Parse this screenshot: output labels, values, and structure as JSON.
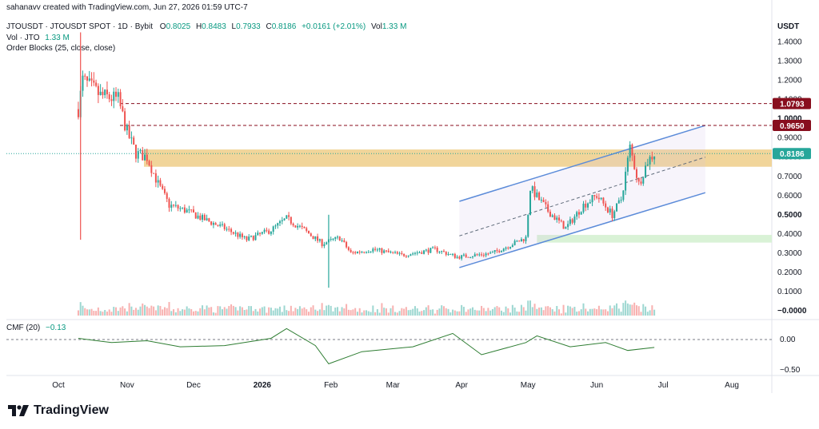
{
  "credit": "sahanavv created with TradingView.com, Jun 27, 2026 01:59 UTC-7",
  "header": {
    "symbol": "JTOUSDT · JTOUSDT SPOT · 1D · Bybit",
    "o_label": "O",
    "o_value": "0.8025",
    "h_label": "H",
    "h_value": "0.8483",
    "l_label": "L",
    "l_value": "0.7933",
    "c_label": "C",
    "c_value": "0.8186",
    "change": "+0.0161 (+2.01%)",
    "vol_label": "Vol",
    "vol_value": "1.33 M"
  },
  "volume_indicator": {
    "label": "Vol · JTO",
    "value": "1.33 M"
  },
  "order_blocks_label": "Order Blocks (25, close, close)",
  "cmf_indicator": {
    "label": "CMF (20)",
    "value": "−0.13"
  },
  "currency": "USDT",
  "price_axis": {
    "ticks": [
      "1.4000",
      "1.3000",
      "1.2000",
      "1.1000",
      "1.0000",
      "0.9000",
      "0.8000",
      "0.7000",
      "0.6000",
      "0.5000",
      "0.4000",
      "0.3000",
      "0.2000",
      "0.1000",
      "−0.0000"
    ],
    "bold_ticks": [
      "1.0000",
      "0.5000",
      "−0.0000"
    ]
  },
  "price_tags": [
    {
      "text": "1.0793",
      "color": "#880e1e"
    },
    {
      "text": "0.9650",
      "color": "#880e1e"
    },
    {
      "text": "0.8186",
      "color": "#26a69a"
    }
  ],
  "cmf_axis": {
    "ticks": [
      "0.00",
      "−0.50"
    ]
  },
  "time_axis": {
    "labels": [
      "Oct",
      "Nov",
      "Dec",
      "2026",
      "Feb",
      "Mar",
      "Apr",
      "May",
      "Jun",
      "Jul",
      "Aug"
    ],
    "bold_labels": [
      "2026"
    ]
  },
  "colors": {
    "up": "#26a69a",
    "down": "#ef5350",
    "channel": "#5b8bd9",
    "order_block": "#f0d08f",
    "support_zone": "#d9f2d6",
    "cmf_line": "#2e7d32",
    "dashed_level": "#880e1e"
  },
  "footer": {
    "logo_icon": "tradingview-logo-icon",
    "brand": "TradingView"
  },
  "chart_data": {
    "type": "candlestick",
    "title": "JTOUSDT · JTOUSDT SPOT · 1D · Bybit",
    "ylim": [
      0,
      1.45
    ],
    "horizontal_levels": [
      1.0793,
      0.965
    ],
    "last_price": 0.8186,
    "order_block_zone": [
      0.75,
      0.84
    ],
    "support_zone": [
      0.355,
      0.395
    ],
    "channel": {
      "upper": [
        {
          "date": "2026-03-31",
          "price": 0.57
        },
        {
          "date": "2026-07-20",
          "price": 0.965
        }
      ],
      "mid": [
        {
          "date": "2026-03-31",
          "price": 0.39
        },
        {
          "date": "2026-07-20",
          "price": 0.8
        }
      ],
      "lower": [
        {
          "date": "2026-03-31",
          "price": 0.225
        },
        {
          "date": "2026-07-20",
          "price": 0.615
        }
      ]
    },
    "price_path": [
      {
        "date": "2025-10-10",
        "price": 1.05
      },
      {
        "date": "2025-10-12",
        "price": 1.2
      },
      {
        "date": "2025-10-20",
        "price": 1.12
      },
      {
        "date": "2025-10-28",
        "price": 1.1
      },
      {
        "date": "2025-11-01",
        "price": 0.93
      },
      {
        "date": "2025-11-05",
        "price": 0.82
      },
      {
        "date": "2025-11-10",
        "price": 0.8
      },
      {
        "date": "2025-11-15",
        "price": 0.66
      },
      {
        "date": "2025-11-20",
        "price": 0.55
      },
      {
        "date": "2025-11-28",
        "price": 0.52
      },
      {
        "date": "2025-12-05",
        "price": 0.48
      },
      {
        "date": "2025-12-15",
        "price": 0.43
      },
      {
        "date": "2025-12-25",
        "price": 0.37
      },
      {
        "date": "2026-01-05",
        "price": 0.42
      },
      {
        "date": "2026-01-12",
        "price": 0.48
      },
      {
        "date": "2026-01-20",
        "price": 0.42
      },
      {
        "date": "2026-01-28",
        "price": 0.35
      },
      {
        "date": "2026-02-05",
        "price": 0.38
      },
      {
        "date": "2026-02-10",
        "price": 0.3
      },
      {
        "date": "2026-02-20",
        "price": 0.32
      },
      {
        "date": "2026-03-05",
        "price": 0.29
      },
      {
        "date": "2026-03-20",
        "price": 0.32
      },
      {
        "date": "2026-03-30",
        "price": 0.28
      },
      {
        "date": "2026-04-15",
        "price": 0.3
      },
      {
        "date": "2026-04-30",
        "price": 0.38
      },
      {
        "date": "2026-05-02",
        "price": 0.64
      },
      {
        "date": "2026-05-10",
        "price": 0.52
      },
      {
        "date": "2026-05-18",
        "price": 0.43
      },
      {
        "date": "2026-05-26",
        "price": 0.55
      },
      {
        "date": "2026-06-01",
        "price": 0.6
      },
      {
        "date": "2026-06-08",
        "price": 0.5
      },
      {
        "date": "2026-06-12",
        "price": 0.58
      },
      {
        "date": "2026-06-16",
        "price": 0.85
      },
      {
        "date": "2026-06-20",
        "price": 0.66
      },
      {
        "date": "2026-06-24",
        "price": 0.78
      },
      {
        "date": "2026-06-27",
        "price": 0.8186
      }
    ],
    "cmf_path": [
      {
        "date": "2025-10-10",
        "value": 0.02
      },
      {
        "date": "2025-10-25",
        "value": -0.05
      },
      {
        "date": "2025-11-10",
        "value": -0.02
      },
      {
        "date": "2025-11-25",
        "value": -0.12
      },
      {
        "date": "2025-12-15",
        "value": -0.1
      },
      {
        "date": "2026-01-05",
        "value": 0.02
      },
      {
        "date": "2026-01-12",
        "value": 0.18
      },
      {
        "date": "2026-01-25",
        "value": -0.1
      },
      {
        "date": "2026-01-31",
        "value": -0.4
      },
      {
        "date": "2026-02-15",
        "value": -0.2
      },
      {
        "date": "2026-03-10",
        "value": -0.12
      },
      {
        "date": "2026-03-28",
        "value": 0.1
      },
      {
        "date": "2026-04-10",
        "value": -0.25
      },
      {
        "date": "2026-04-30",
        "value": -0.05
      },
      {
        "date": "2026-05-05",
        "value": 0.06
      },
      {
        "date": "2026-05-20",
        "value": -0.12
      },
      {
        "date": "2026-06-05",
        "value": -0.05
      },
      {
        "date": "2026-06-15",
        "value": -0.18
      },
      {
        "date": "2026-06-27",
        "value": -0.13
      }
    ]
  }
}
